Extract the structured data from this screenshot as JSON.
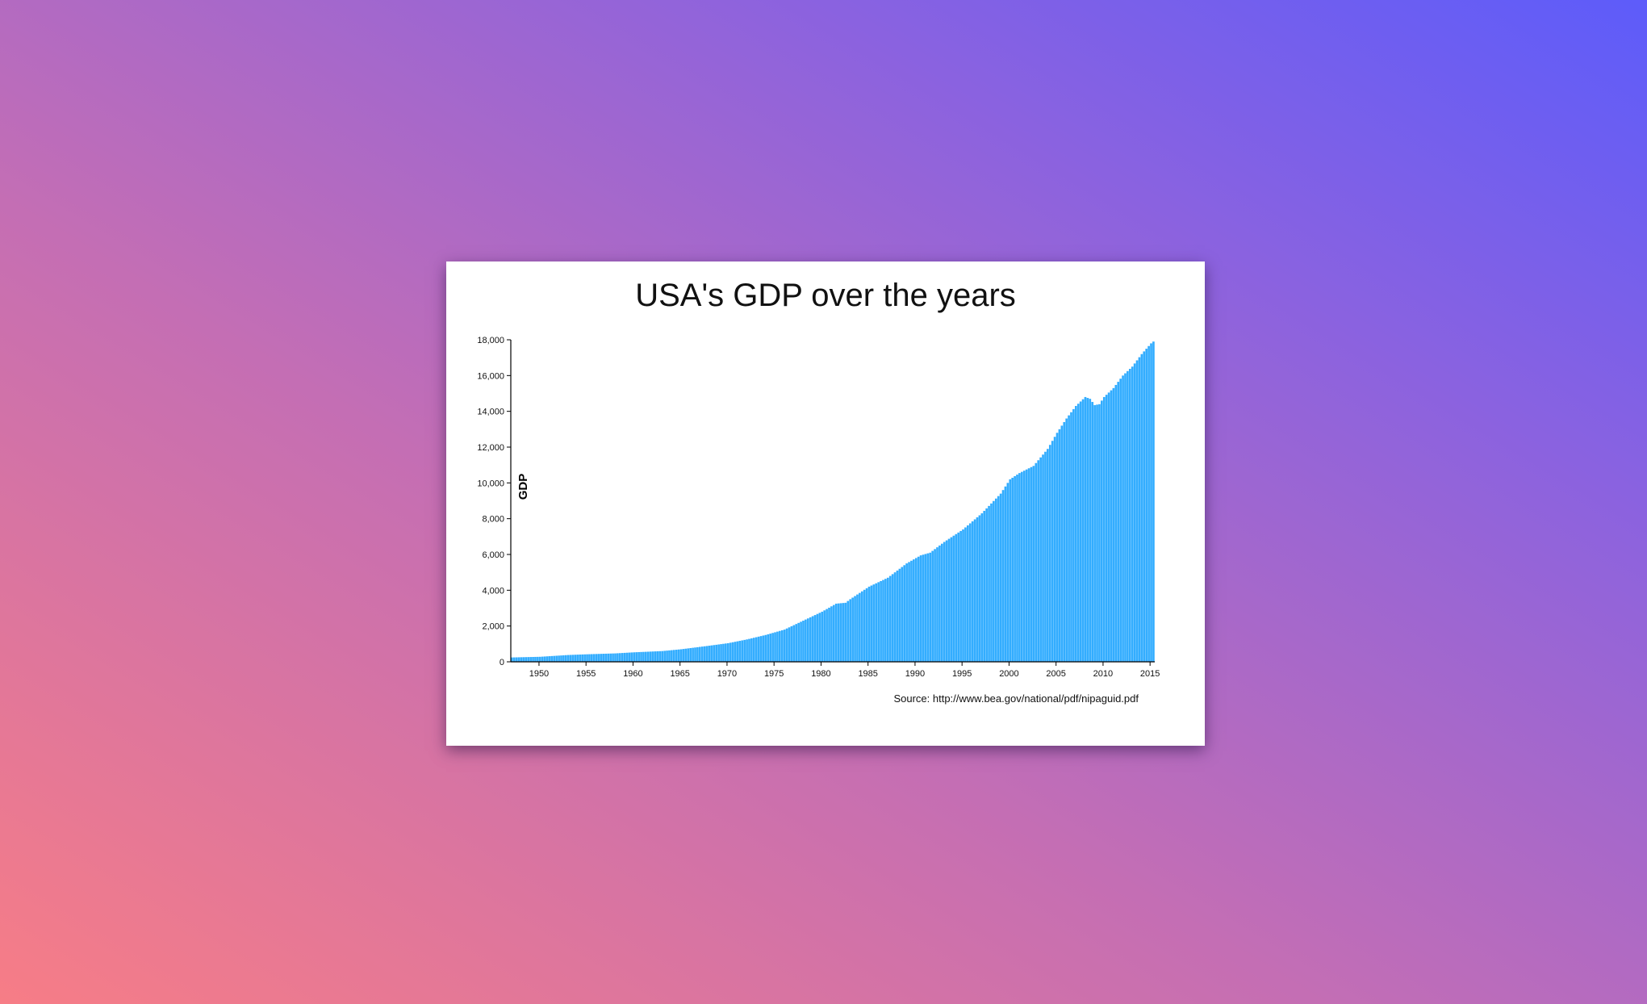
{
  "card": {
    "title": "USA's GDP over the years",
    "source": "Source: http://www.bea.gov/national/pdf/nipaguid.pdf"
  },
  "chart_data": {
    "type": "bar",
    "title": "USA's GDP over the years",
    "xlabel": "",
    "ylabel": "GDP",
    "ylim": [
      0,
      18000
    ],
    "xlim": [
      1947,
      2015.5
    ],
    "bar_color": "#33adff",
    "yticks": [
      0,
      2000,
      4000,
      6000,
      8000,
      10000,
      12000,
      14000,
      16000,
      18000
    ],
    "ytick_labels": [
      "0",
      "2,000",
      "4,000",
      "6,000",
      "8,000",
      "10,000",
      "12,000",
      "14,000",
      "16,000",
      "18,000"
    ],
    "xticks": [
      1950,
      1955,
      1960,
      1965,
      1970,
      1975,
      1980,
      1985,
      1990,
      1995,
      2000,
      2005,
      2010,
      2015
    ],
    "xtick_labels": [
      "1950",
      "1955",
      "1960",
      "1965",
      "1970",
      "1975",
      "1980",
      "1985",
      "1990",
      "1995",
      "2000",
      "2005",
      "2010",
      "2015"
    ],
    "series": [
      {
        "frequency": "quarterly",
        "anchors": [
          [
            1947.0,
            243
          ],
          [
            1950.0,
            280
          ],
          [
            1953.0,
            380
          ],
          [
            1955.0,
            420
          ],
          [
            1958.0,
            470
          ],
          [
            1960.0,
            530
          ],
          [
            1963.0,
            600
          ],
          [
            1965.0,
            700
          ],
          [
            1968.0,
            900
          ],
          [
            1970.0,
            1040
          ],
          [
            1972.0,
            1250
          ],
          [
            1974.0,
            1500
          ],
          [
            1976.0,
            1800
          ],
          [
            1978.0,
            2300
          ],
          [
            1980.0,
            2800
          ],
          [
            1981.5,
            3250
          ],
          [
            1982.5,
            3300
          ],
          [
            1983.0,
            3500
          ],
          [
            1985.0,
            4200
          ],
          [
            1987.0,
            4700
          ],
          [
            1989.0,
            5500
          ],
          [
            1990.5,
            5950
          ],
          [
            1991.5,
            6100
          ],
          [
            1993.0,
            6700
          ],
          [
            1995.0,
            7400
          ],
          [
            1997.0,
            8300
          ],
          [
            1999.0,
            9400
          ],
          [
            2000.0,
            10200
          ],
          [
            2001.0,
            10550
          ],
          [
            2002.5,
            10950
          ],
          [
            2004.0,
            11900
          ],
          [
            2005.0,
            12800
          ],
          [
            2006.0,
            13600
          ],
          [
            2007.0,
            14300
          ],
          [
            2008.0,
            14800
          ],
          [
            2008.5,
            14700
          ],
          [
            2009.0,
            14350
          ],
          [
            2009.5,
            14400
          ],
          [
            2010.0,
            14800
          ],
          [
            2011.0,
            15300
          ],
          [
            2012.0,
            16000
          ],
          [
            2013.0,
            16500
          ],
          [
            2014.0,
            17200
          ],
          [
            2015.0,
            17800
          ],
          [
            2015.5,
            18000
          ]
        ]
      }
    ]
  }
}
